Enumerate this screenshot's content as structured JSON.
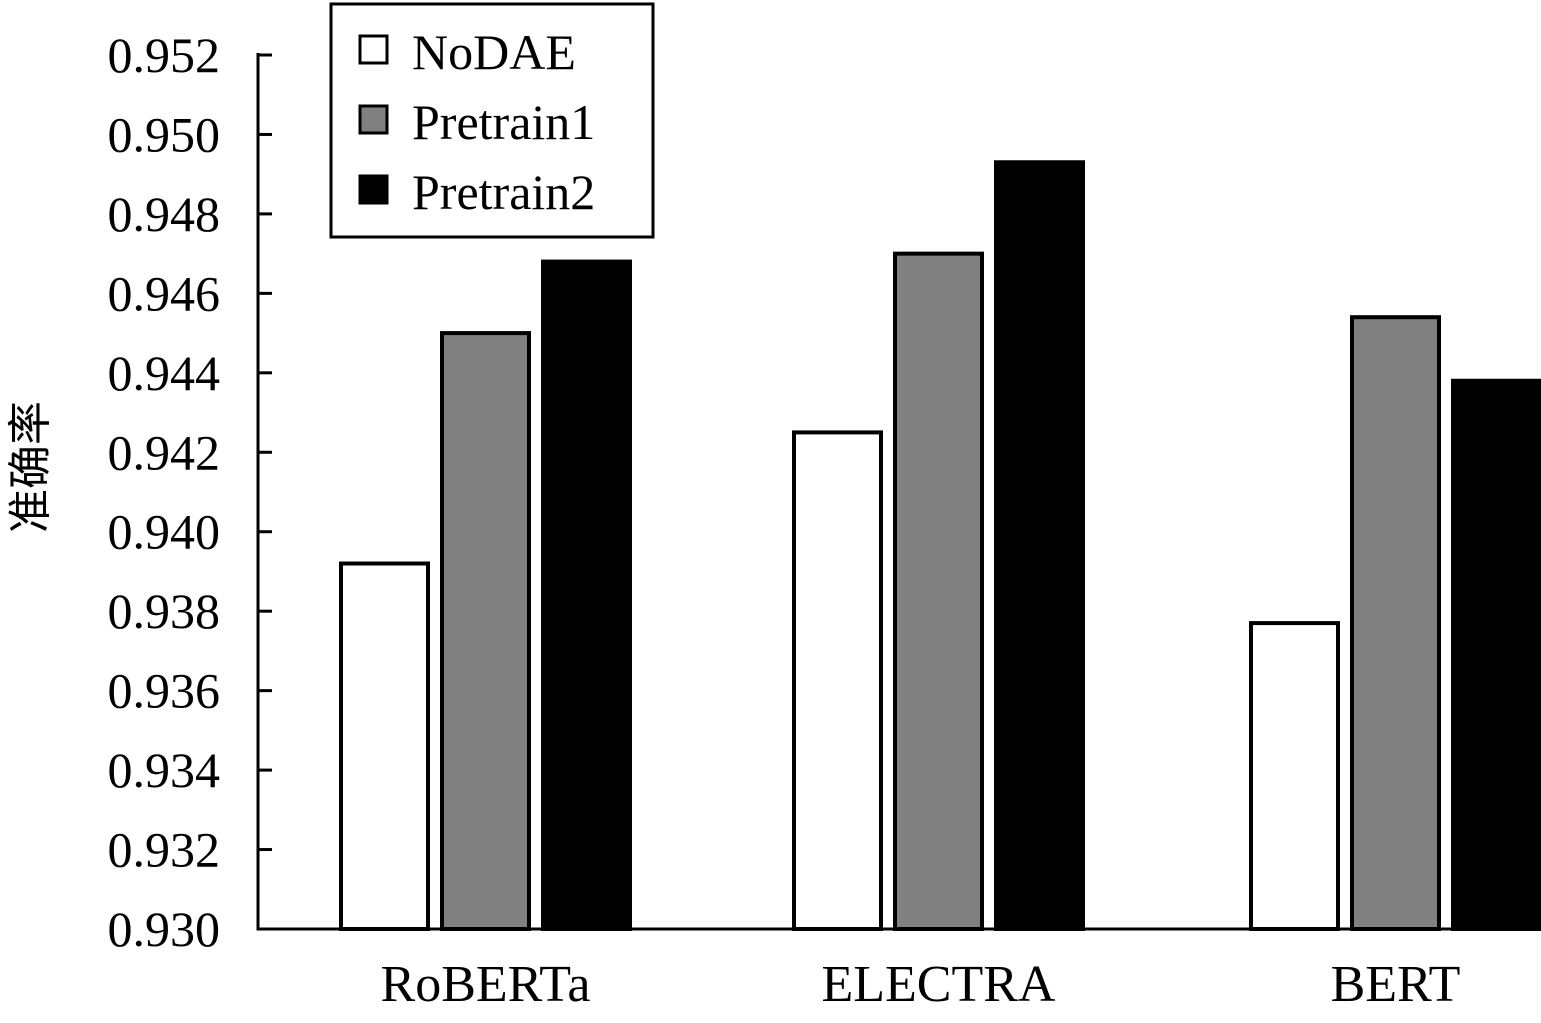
{
  "chart_data": {
    "type": "bar",
    "title": "",
    "xlabel": "",
    "ylabel": "准确率",
    "categories": [
      "RoBERTa",
      "ELECTRA",
      "BERT"
    ],
    "series": [
      {
        "name": "NoDAE",
        "color": "#ffffff",
        "values": [
          0.9392,
          0.9425,
          0.9377
        ]
      },
      {
        "name": "Pretrain1",
        "color": "#808080",
        "values": [
          0.945,
          0.947,
          0.9454
        ]
      },
      {
        "name": "Pretrain2",
        "color": "#000000",
        "values": [
          0.9468,
          0.9493,
          0.9438
        ]
      }
    ],
    "ylim": [
      0.93,
      0.952
    ],
    "yticks": [
      "0.930",
      "0.932",
      "0.934",
      "0.936",
      "0.938",
      "0.940",
      "0.942",
      "0.944",
      "0.946",
      "0.948",
      "0.950",
      "0.952"
    ],
    "grid": false,
    "legend_position": "top-left"
  }
}
